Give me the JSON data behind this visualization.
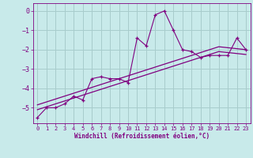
{
  "x_values": [
    0,
    1,
    2,
    3,
    4,
    5,
    6,
    7,
    8,
    9,
    10,
    11,
    12,
    13,
    14,
    15,
    16,
    17,
    18,
    19,
    20,
    21,
    22,
    23
  ],
  "y_main": [
    -5.5,
    -5.0,
    -5.0,
    -4.8,
    -4.4,
    -4.6,
    -3.5,
    -3.4,
    -3.5,
    -3.5,
    -3.7,
    -1.4,
    -1.8,
    -0.2,
    0.0,
    -1.0,
    -2.0,
    -2.1,
    -2.4,
    -2.3,
    -2.3,
    -2.3,
    -1.4,
    -2.0
  ],
  "y_trend1": [
    -4.85,
    -4.7,
    -4.55,
    -4.4,
    -4.25,
    -4.1,
    -3.95,
    -3.8,
    -3.65,
    -3.5,
    -3.35,
    -3.2,
    -3.05,
    -2.9,
    -2.75,
    -2.6,
    -2.45,
    -2.3,
    -2.15,
    -2.0,
    -1.85,
    -1.9,
    -1.95,
    -2.0
  ],
  "y_trend2": [
    -5.1,
    -4.95,
    -4.8,
    -4.65,
    -4.5,
    -4.35,
    -4.2,
    -4.05,
    -3.9,
    -3.75,
    -3.6,
    -3.45,
    -3.3,
    -3.15,
    -3.0,
    -2.85,
    -2.7,
    -2.55,
    -2.4,
    -2.25,
    -2.1,
    -2.15,
    -2.2,
    -2.25
  ],
  "line_color": "#800080",
  "bg_color": "#c8eaea",
  "grid_color": "#a8cccc",
  "axis_color": "#800080",
  "ylabel_values": [
    0,
    -1,
    -2,
    -3,
    -4,
    -5
  ],
  "xlim": [
    -0.5,
    23.5
  ],
  "ylim": [
    -5.8,
    0.4
  ],
  "xlabel": "Windchill (Refroidissement éolien,°C)",
  "xtick_labels": [
    "0",
    "1",
    "2",
    "3",
    "4",
    "5",
    "6",
    "7",
    "8",
    "9",
    "10",
    "11",
    "12",
    "13",
    "14",
    "15",
    "16",
    "17",
    "18",
    "19",
    "20",
    "21",
    "22",
    "23"
  ]
}
